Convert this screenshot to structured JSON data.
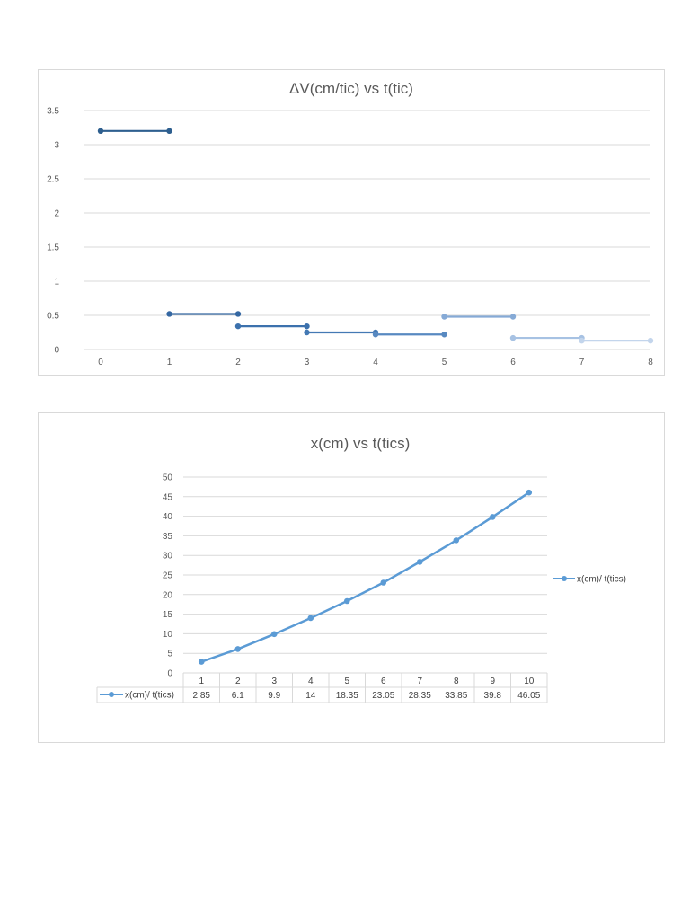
{
  "chart_data": [
    {
      "type": "line",
      "title": "ΔV(cm/tic) vs t(tic)",
      "xlabel": "",
      "ylabel": "",
      "xlim": [
        0,
        8
      ],
      "ylim": [
        0,
        3.5
      ],
      "x_ticks": [
        "0",
        "1",
        "2",
        "3",
        "4",
        "5",
        "6",
        "7",
        "8"
      ],
      "y_ticks": [
        "0",
        "0.5",
        "1",
        "1.5",
        "2",
        "2.5",
        "3",
        "3.5"
      ],
      "grid": true,
      "legend": "none",
      "series": [
        {
          "color": "#2e5f8f",
          "x": [
            0,
            1
          ],
          "y": [
            3.2,
            3.2
          ]
        },
        {
          "color": "#3467a2",
          "x": [
            1,
            2
          ],
          "y": [
            0.52,
            0.52
          ]
        },
        {
          "color": "#3c71ad",
          "x": [
            2,
            3
          ],
          "y": [
            0.34,
            0.34
          ]
        },
        {
          "color": "#4479b4",
          "x": [
            3,
            4
          ],
          "y": [
            0.25,
            0.25
          ]
        },
        {
          "color": "#5889c1",
          "x": [
            4,
            5
          ],
          "y": [
            0.22,
            0.22
          ]
        },
        {
          "color": "#86aad6",
          "x": [
            5,
            6
          ],
          "y": [
            0.48,
            0.48
          ]
        },
        {
          "color": "#a7c2e3",
          "x": [
            6,
            7
          ],
          "y": [
            0.17,
            0.17
          ]
        },
        {
          "color": "#c3d5ec",
          "x": [
            7,
            8
          ],
          "y": [
            0.13,
            0.13
          ]
        }
      ]
    },
    {
      "type": "line",
      "title": "x(cm) vs t(tics)",
      "xlabel": "",
      "ylabel": "",
      "ylim": [
        0,
        50
      ],
      "y_ticks": [
        "0",
        "5",
        "10",
        "15",
        "20",
        "25",
        "30",
        "35",
        "40",
        "45",
        "50"
      ],
      "categories": [
        "1",
        "2",
        "3",
        "4",
        "5",
        "6",
        "7",
        "8",
        "9",
        "10"
      ],
      "grid": true,
      "legend": "right",
      "data_table": true,
      "series": [
        {
          "name": "x(cm)/ t(tics)",
          "color": "#5b9bd5",
          "values": [
            2.85,
            6.1,
            9.9,
            14,
            18.35,
            23.05,
            28.35,
            33.85,
            39.8,
            46.05
          ],
          "labels": [
            "2.85",
            "6.1",
            "9.9",
            "14",
            "18.35",
            "23.05",
            "28.35",
            "33.85",
            "39.8",
            "46.05"
          ]
        }
      ]
    }
  ]
}
